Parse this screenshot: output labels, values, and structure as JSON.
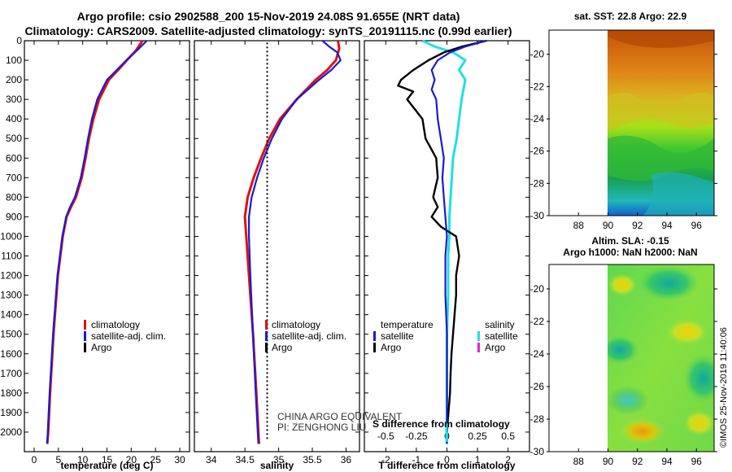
{
  "header": {
    "title_line1": "Argo profile: csio 2902588_200 15-Nov-2019 24.08S 91.655E (NRT data)",
    "title_line2": "Climatology: CARS2009. Satellite-adjusted climatology: synTS_20191115.nc (0.99d earlier)"
  },
  "legend": {
    "climatology": "climatology",
    "satellite_adj": "satellite-adj. clim.",
    "argo": "Argo",
    "temperature": "temperature",
    "salinity": "salinity",
    "satellite": "satellite"
  },
  "annotations": {
    "equivalent": "CHINA ARGO EQUIVALENT",
    "pi": "PI: ZENGHONG LIU",
    "s_diff_label": "S difference from climatology",
    "watermark": "©IMOS 25-Nov-2019 11:40:06"
  },
  "maps": {
    "sst_title": "sat. SST: 22.8 Argo: 22.9",
    "sla_title1": "Altim. SLA: -0.15",
    "sla_title2": "Argo h1000: NaN h2000: NaN",
    "lon_ticks": [
      88,
      90,
      92,
      94,
      96
    ],
    "lat_ticks": [
      -20,
      -22,
      -24,
      -26,
      -28,
      -30
    ],
    "lon_tick_labels": [
      "88",
      "90",
      "92",
      "94",
      "96"
    ],
    "lat_tick_labels": [
      "-20",
      "-22",
      "-24",
      "-26",
      "-28",
      "-30"
    ]
  },
  "colors": {
    "climatology": "#e01010",
    "satellite": "#1a1ad6",
    "argo": "#000000",
    "salinity_satellite": "#20e0e0",
    "salinity_argo": "#e020e0"
  },
  "chart_data": [
    {
      "type": "line",
      "xlabel": "temperature (deg C)",
      "ylabel": "",
      "xlim": [
        -2,
        32
      ],
      "ylim": [
        2100,
        0
      ],
      "x_ticks": [
        0,
        5,
        10,
        15,
        20,
        25,
        30
      ],
      "x_tick_labels": [
        "0",
        "5",
        "10",
        "15",
        "20",
        "25",
        "30"
      ],
      "y_ticks": [
        0,
        100,
        200,
        300,
        400,
        500,
        600,
        700,
        800,
        900,
        1000,
        1100,
        1200,
        1300,
        1400,
        1500,
        1600,
        1700,
        1800,
        1900,
        2000
      ],
      "y_tick_labels": [
        "0",
        "100",
        "200",
        "300",
        "400",
        "500",
        "600",
        "700",
        "800",
        "900",
        "1000",
        "1100",
        "1200",
        "1300",
        "1400",
        "1500",
        "1600",
        "1700",
        "1800",
        "1900",
        "2000"
      ],
      "series": [
        {
          "name": "climatology",
          "depth": [
            0,
            50,
            100,
            150,
            200,
            300,
            400,
            500,
            600,
            700,
            800,
            850,
            900,
            1000,
            1200,
            1500,
            1800,
            2000,
            2060
          ],
          "values": [
            22.3,
            21.0,
            19.1,
            17.3,
            15.4,
            13.4,
            12.2,
            11.3,
            10.6,
            9.8,
            8.6,
            7.6,
            6.7,
            5.9,
            4.9,
            4.0,
            3.3,
            2.9,
            2.7
          ]
        },
        {
          "name": "satellite-adj. clim.",
          "depth": [
            0,
            50,
            100,
            150,
            200,
            300,
            400,
            500,
            600,
            700,
            800,
            850,
            900,
            1000,
            1200,
            1500,
            1800,
            2000,
            2060
          ],
          "values": [
            23.2,
            21.2,
            19.0,
            17.0,
            15.0,
            13.0,
            11.9,
            11.1,
            10.4,
            9.6,
            8.4,
            7.4,
            6.6,
            5.8,
            4.8,
            3.9,
            3.2,
            2.8,
            2.7
          ]
        }
      ]
    },
    {
      "type": "line",
      "xlabel": "salinity",
      "ylabel": "",
      "xlim": [
        33.75,
        36.2
      ],
      "ylim": [
        2100,
        0
      ],
      "x_ticks": [
        34,
        34.5,
        35,
        35.5,
        36
      ],
      "x_tick_labels": [
        "34",
        "34.5",
        "35",
        "35.5",
        "36"
      ],
      "argo_dotted_x": 34.83,
      "series": [
        {
          "name": "climatology",
          "depth": [
            0,
            40,
            100,
            150,
            200,
            300,
            400,
            500,
            600,
            700,
            800,
            900,
            1000,
            1200,
            1500,
            1800,
            2000,
            2060
          ],
          "values": [
            35.88,
            35.9,
            35.85,
            35.72,
            35.55,
            35.27,
            35.02,
            34.86,
            34.74,
            34.63,
            34.54,
            34.5,
            34.52,
            34.56,
            34.62,
            34.67,
            34.7,
            34.71
          ]
        },
        {
          "name": "satellite-adj. clim.",
          "depth": [
            0,
            30,
            60,
            100,
            150,
            200,
            300,
            400,
            500,
            600,
            700,
            800,
            900,
            1000,
            1200,
            1500,
            1800,
            2000,
            2060
          ],
          "values": [
            35.65,
            35.75,
            35.87,
            35.92,
            35.78,
            35.6,
            35.27,
            35.05,
            34.9,
            34.78,
            34.68,
            34.6,
            34.56,
            34.56,
            34.58,
            34.62,
            34.66,
            34.69,
            34.7
          ]
        }
      ]
    },
    {
      "type": "line",
      "xlabel": "T difference from climatology",
      "ylabel": "",
      "xlim": [
        -2.7,
        2.7
      ],
      "ylim": [
        2100,
        0
      ],
      "x_ticks": [
        -2,
        -1,
        0,
        1,
        2
      ],
      "x_tick_labels": [
        "-2",
        "-1",
        "0",
        "1",
        "2"
      ],
      "s_ticks": [
        -0.5,
        -0.25,
        0,
        0.25,
        0.5
      ],
      "s_tick_labels": [
        "-0.5",
        "-0.25",
        "0",
        "0.25",
        "0.5"
      ],
      "series": [
        {
          "name": "T satellite",
          "depth": [
            0,
            30,
            60,
            100,
            150,
            200,
            250,
            300,
            400,
            500,
            600,
            700,
            800,
            900,
            1000,
            1100,
            1300,
            1500,
            1800,
            2000,
            2060
          ],
          "values": [
            1.3,
            0.6,
            0.1,
            -0.3,
            -0.5,
            -0.4,
            -0.5,
            -0.35,
            -0.3,
            -0.2,
            -0.1,
            -0.15,
            -0.1,
            -0.05,
            0.0,
            -0.05,
            -0.05,
            0.0,
            0.0,
            0.0,
            0.0
          ]
        },
        {
          "name": "T Argo",
          "depth": [
            0,
            30,
            60,
            100,
            150,
            200,
            230,
            260,
            300,
            400,
            500,
            600,
            700,
            800,
            850,
            900,
            950,
            1000,
            1100,
            1200,
            1300,
            1400,
            1500,
            1600,
            1700,
            1800,
            1900,
            2000
          ],
          "values": [
            1.3,
            0.5,
            -0.1,
            -0.6,
            -1.1,
            -1.5,
            -1.6,
            -1.1,
            -1.3,
            -0.8,
            -0.7,
            -0.35,
            -0.3,
            -0.45,
            -0.3,
            -0.5,
            -0.2,
            0.3,
            0.4,
            0.3,
            0.3,
            0.25,
            0.2,
            0.15,
            0.12,
            0.1,
            0.05,
            0.0
          ]
        },
        {
          "name": "S satellite",
          "depth": [
            0,
            30,
            60,
            100,
            150,
            200,
            300,
            400,
            500,
            600,
            700,
            800,
            900,
            1000,
            1100,
            1300,
            1500,
            1800,
            2000,
            2060
          ],
          "values": [
            -0.2,
            -0.1,
            0.05,
            0.15,
            0.1,
            0.15,
            0.12,
            0.1,
            0.08,
            0.05,
            0.04,
            0.03,
            0.02,
            0.02,
            0.01,
            0.01,
            0.0,
            0.0,
            0.0,
            0.0
          ]
        }
      ]
    }
  ]
}
